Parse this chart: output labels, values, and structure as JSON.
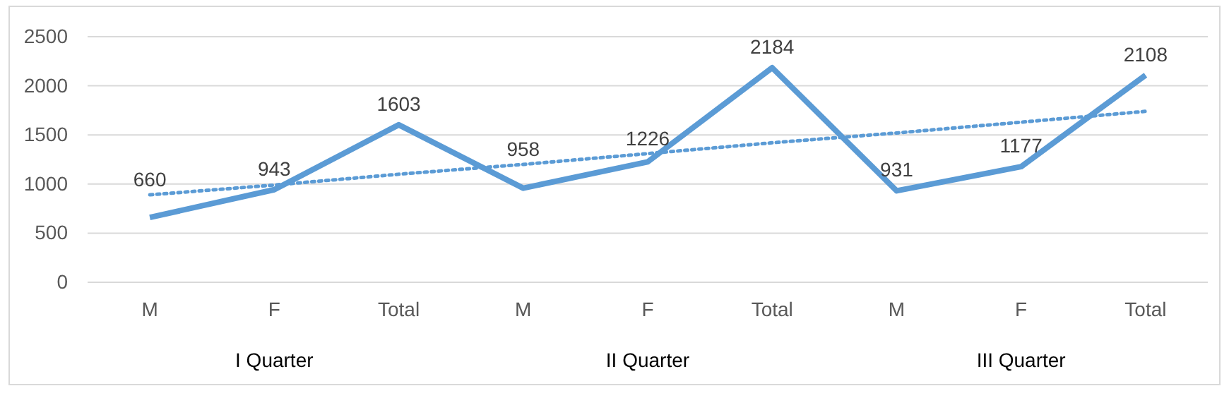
{
  "chart_data": {
    "type": "line",
    "categories": [
      "M",
      "F",
      "Total",
      "M",
      "F",
      "Total",
      "M",
      "F",
      "Total"
    ],
    "series": [
      {
        "color": "#5b9bd5",
        "values": [
          660,
          943,
          1603,
          958,
          1226,
          2184,
          931,
          1177,
          2108
        ],
        "value_labels": [
          "660",
          "943",
          "1603",
          "958",
          "1226",
          "2184",
          "931",
          "1177",
          "2108"
        ],
        "line_style": "solid"
      },
      {
        "color": "#5b9bd5",
        "values": [
          890,
          990,
          1100,
          1200,
          1310,
          1420,
          1520,
          1630,
          1740
        ],
        "line_style": "dotted"
      }
    ],
    "annotations": [
      "I Quarter",
      "II Quarter",
      "III Quarter"
    ],
    "ylim": [
      0,
      2500
    ],
    "yticks": [
      0,
      500,
      1000,
      1500,
      2000,
      2500
    ],
    "grid": "y",
    "marker": "none"
  }
}
